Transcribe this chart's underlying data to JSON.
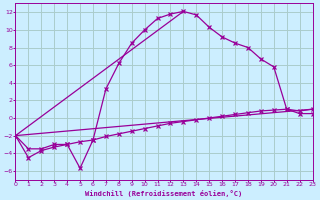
{
  "xlabel": "Windchill (Refroidissement éolien,°C)",
  "bg_color": "#cceeff",
  "grid_color": "#aacccc",
  "line_color": "#990099",
  "xlim": [
    0,
    23
  ],
  "ylim": [
    -7,
    13
  ],
  "xticks": [
    0,
    1,
    2,
    3,
    4,
    5,
    6,
    7,
    8,
    9,
    10,
    11,
    12,
    13,
    14,
    15,
    16,
    17,
    18,
    19,
    20,
    21,
    22,
    23
  ],
  "yticks": [
    -6,
    -4,
    -2,
    0,
    2,
    4,
    6,
    8,
    10,
    12
  ],
  "curve1_x": [
    0,
    1,
    2,
    3,
    4,
    5,
    6,
    7,
    8,
    9,
    10,
    11,
    12,
    13,
    14,
    15,
    16,
    17,
    18,
    19,
    20,
    21,
    22,
    23
  ],
  "curve1_y": [
    -2.0,
    -4.5,
    -3.7,
    -3.3,
    -3.0,
    -5.7,
    -2.5,
    3.3,
    6.2,
    8.5,
    10.0,
    11.3,
    11.8,
    12.1,
    11.7,
    10.3,
    9.2,
    8.5,
    8.0,
    6.7,
    5.8,
    1.0,
    0.8,
    1.0
  ],
  "curve2_x": [
    0,
    1,
    2,
    3,
    4,
    5,
    6,
    7,
    8,
    9,
    10,
    11,
    12,
    13,
    14,
    15,
    16,
    17,
    18,
    19,
    20,
    21,
    22,
    23
  ],
  "curve2_y": [
    -2.0,
    -3.5,
    -3.5,
    -3.0,
    -3.0,
    -2.7,
    -2.5,
    -2.1,
    -1.8,
    -1.5,
    -1.2,
    -0.9,
    -0.6,
    -0.4,
    -0.2,
    0.0,
    0.2,
    0.4,
    0.6,
    0.8,
    0.9,
    1.0,
    0.5,
    0.5
  ],
  "line1_x": [
    0,
    13
  ],
  "line1_y": [
    -2.0,
    12.1
  ],
  "line2_x": [
    0,
    23
  ],
  "line2_y": [
    -2.0,
    1.0
  ]
}
